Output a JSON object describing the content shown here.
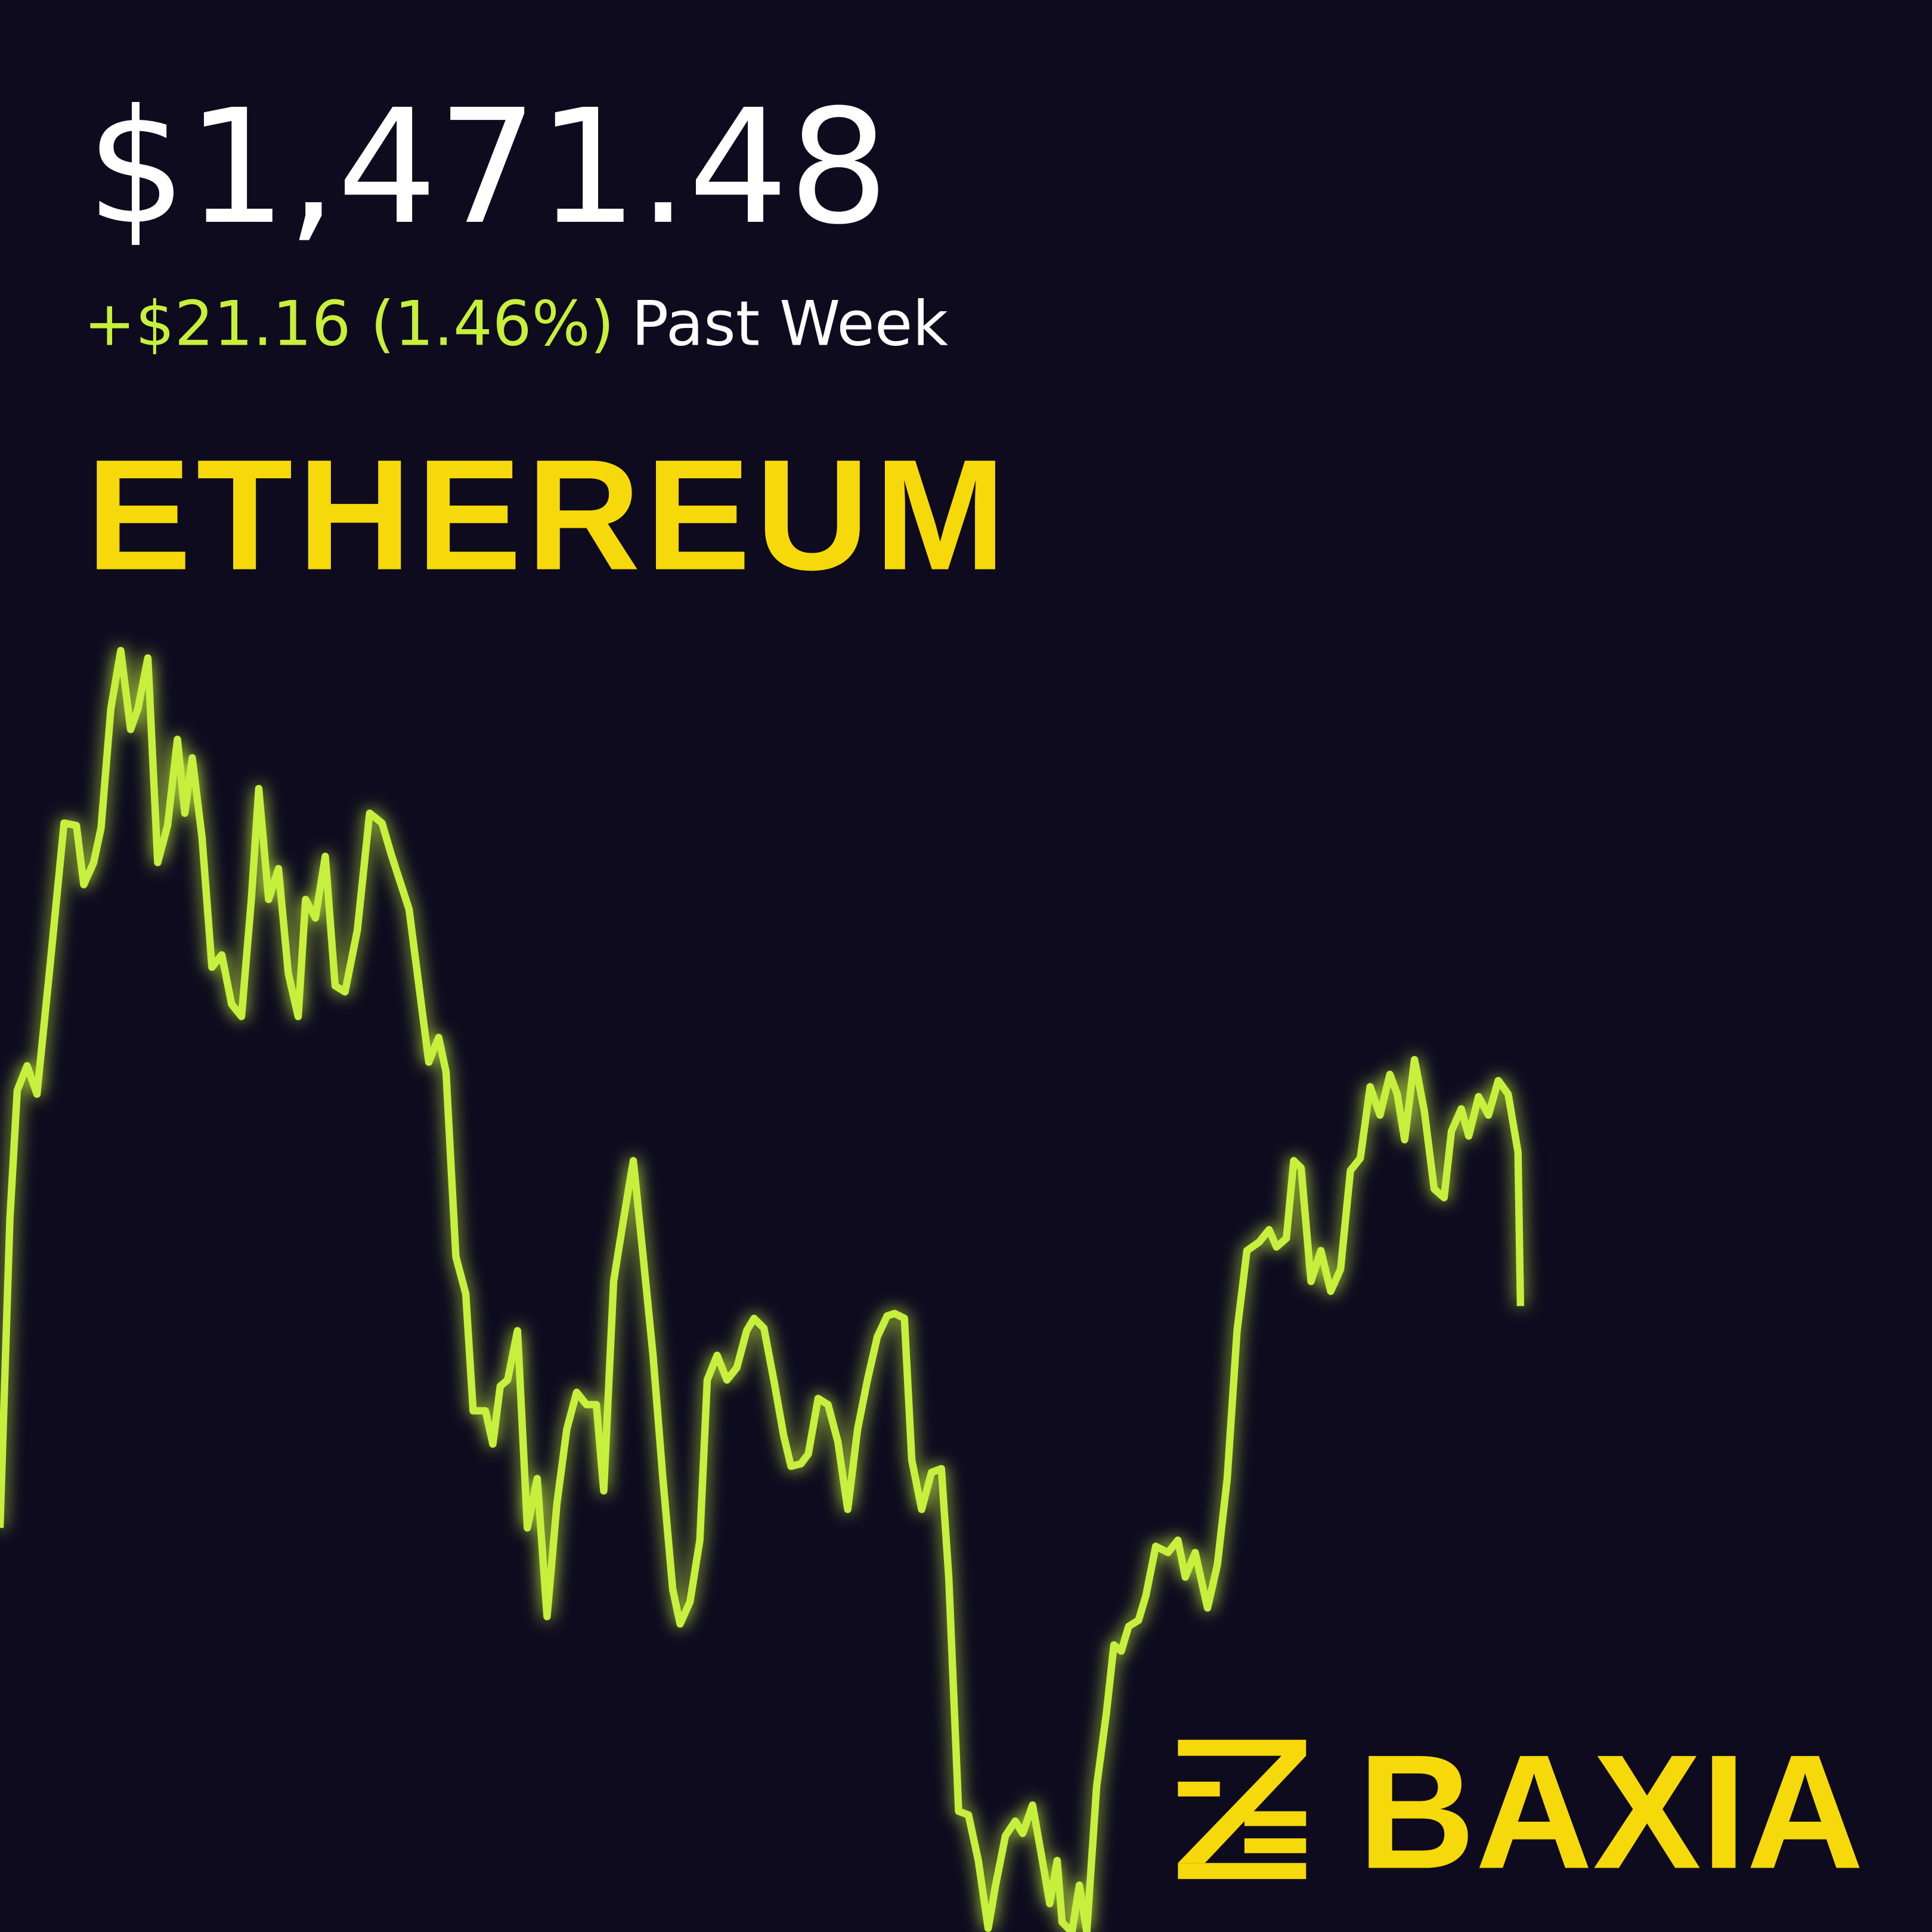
{
  "price": "$1,471.48",
  "change": "+$21.16 (1.46%)",
  "period": "Past Week",
  "title": "ETHEREUM",
  "brand": "BAXIA"
}
